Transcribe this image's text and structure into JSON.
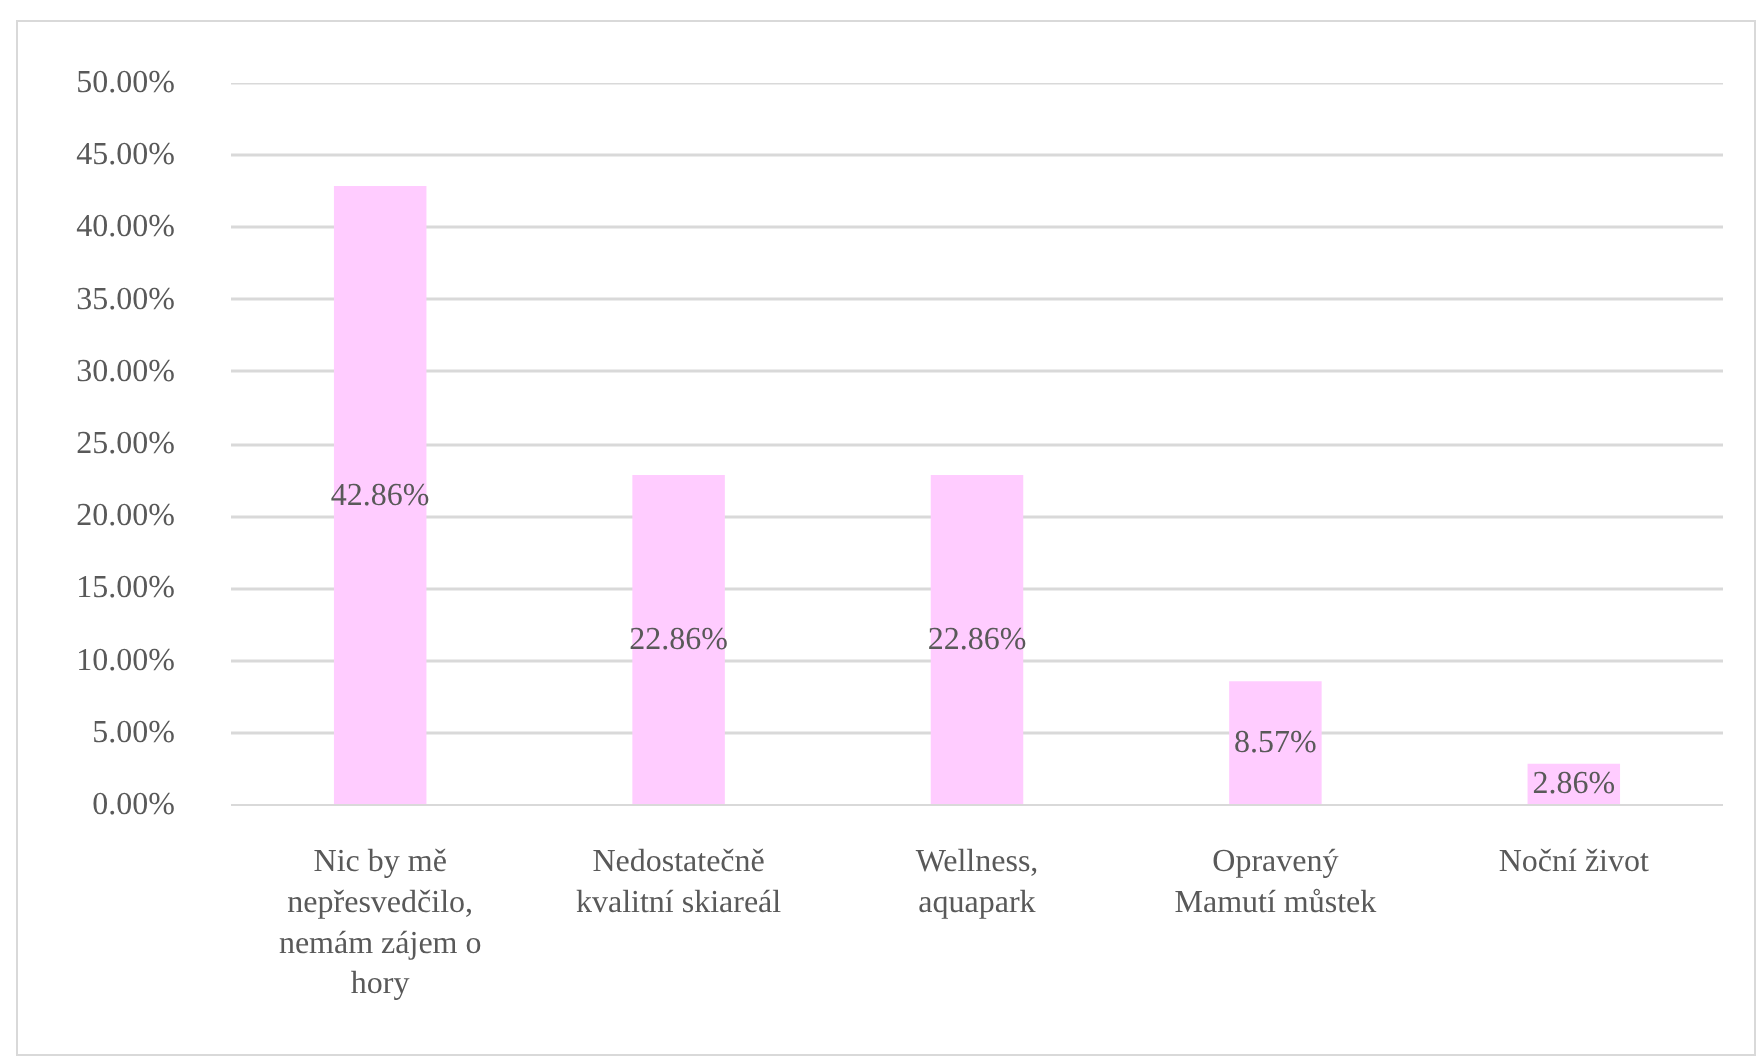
{
  "chart_data": {
    "type": "bar",
    "categories": [
      "Nic by mě\nnepřesvedčilo,\nnemám zájem o\nhory",
      "Nedostatečně\nkvalitní skiareál",
      "Wellness,\naquapark",
      "Opravený\nMamutí můstek",
      "Noční život"
    ],
    "values": [
      42.86,
      22.86,
      22.86,
      8.57,
      2.86
    ],
    "value_labels": [
      "42.86%",
      "22.86%",
      "22.86%",
      "8.57%",
      "2.86%"
    ],
    "color": "#ffccff",
    "ylim": [
      0,
      50
    ],
    "yticks": [
      {
        "value": 0,
        "label": "0.00%"
      },
      {
        "value": 5,
        "label": "5.00%"
      },
      {
        "value": 10,
        "label": "10.00%"
      },
      {
        "value": 15,
        "label": "15.00%"
      },
      {
        "value": 20,
        "label": "20.00%"
      },
      {
        "value": 25,
        "label": "25.00%"
      },
      {
        "value": 30,
        "label": "30.00%"
      },
      {
        "value": 35,
        "label": "35.00%"
      },
      {
        "value": 40,
        "label": "40.00%"
      },
      {
        "value": 45,
        "label": "45.00%"
      },
      {
        "value": 50,
        "label": "50.00%"
      }
    ],
    "grid": "y"
  }
}
